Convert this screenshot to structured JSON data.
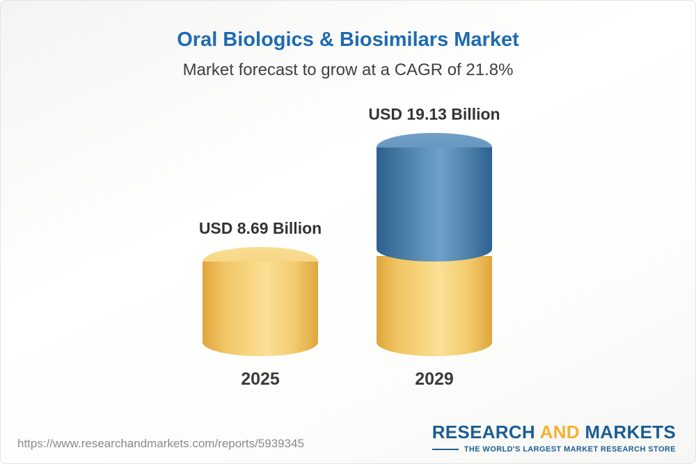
{
  "header": {
    "title": "Oral Biologics & Biosimilars Market",
    "subtitle": "Market forecast to grow at a CAGR of 21.8%"
  },
  "chart_data": {
    "type": "bar",
    "categories": [
      "2025",
      "2029"
    ],
    "values": [
      8.69,
      19.13
    ],
    "value_labels": [
      "USD 8.69 Billion",
      "USD 19.13 Billion"
    ],
    "unit": "USD Billion",
    "title": "Oral Biologics & Biosimilars Market",
    "subtitle": "Market forecast to grow at a CAGR of 21.8%",
    "cagr_percent": 21.8,
    "bar_style": "3d-cylinder",
    "stacked_note": "2029 bar shows 2025 value in yellow with incremental growth in blue",
    "colors": {
      "bar_yellow": "#f3cd6d",
      "bar_blue": "#4a7fae",
      "label_text": "#333333"
    },
    "legend_position": "none",
    "grid": false
  },
  "footer": {
    "url": "https://www.researchandmarkets.com/reports/5939345",
    "logo": {
      "research": "RESEARCH",
      "and": "AND",
      "markets": "MARKETS",
      "tagline": "THE WORLD'S LARGEST MARKET RESEARCH STORE"
    }
  }
}
